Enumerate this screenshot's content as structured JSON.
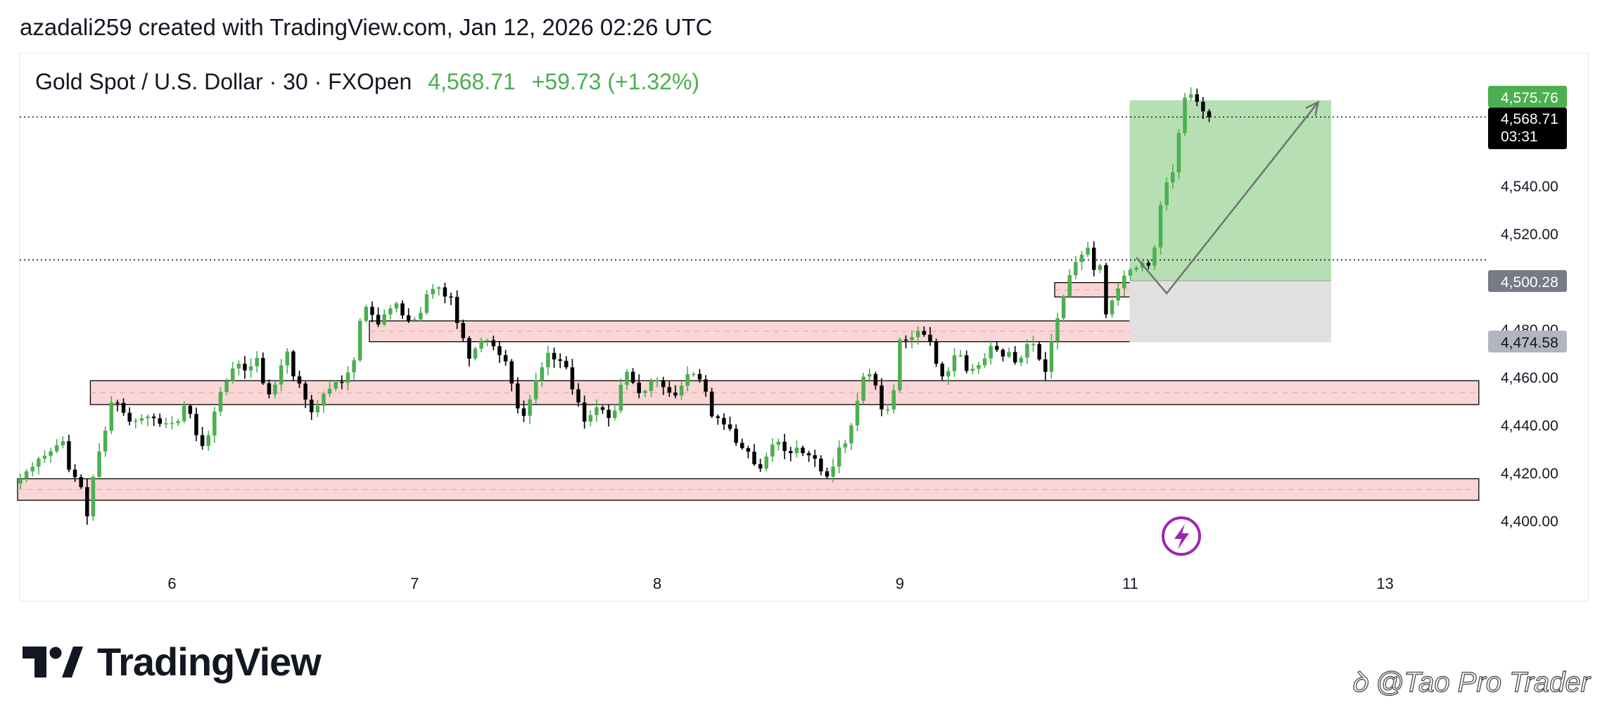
{
  "header": {
    "credit": "azadali259 created with TradingView.com, Jan 12, 2026 02:26 UTC"
  },
  "legend": {
    "symbol": "Gold Spot / U.S. Dollar · 30 · FXOpen",
    "price": "4,568.71",
    "change": "+59.73 (+1.32%)"
  },
  "colors": {
    "up": "#4caf50",
    "down": "#000000",
    "zone_fill": "#f8c8c8",
    "zone_stroke": "#000000",
    "target_fill": "#b6dfb3",
    "stop_fill": "#e0e0e0",
    "arrow": "#6f6f6f",
    "lightning": "#9c27b0"
  },
  "price_labels": {
    "top_green": "4,575.76",
    "current": "4,568.71",
    "countdown": "03:31",
    "entry": "4,500.28",
    "stop": "4,474.58"
  },
  "brand": {
    "name": "TradingView",
    "logo_icon": "tradingview-logo-icon"
  },
  "watermark": {
    "text": "@Tao Pro Trader",
    "icon": "weibo-style-icon"
  },
  "chart_data": {
    "type": "candlestick",
    "symbol": "Gold Spot / U.S. Dollar",
    "interval": "30",
    "ylim": [
      4385,
      4600
    ],
    "y_ticks": [
      {
        "value": 4400,
        "label": "4,400.00"
      },
      {
        "value": 4420,
        "label": "4,420.00"
      },
      {
        "value": 4440,
        "label": "4,440.00"
      },
      {
        "value": 4460,
        "label": "4,460.00"
      },
      {
        "value": 4480,
        "label": "4,480.00"
      },
      {
        "value": 4520,
        "label": "4,520.00"
      },
      {
        "value": 4540,
        "label": "4,540.00"
      }
    ],
    "x_ticks": [
      {
        "index": 25,
        "label": "6"
      },
      {
        "index": 65,
        "label": "7"
      },
      {
        "index": 105,
        "label": "8"
      },
      {
        "index": 145,
        "label": "9"
      },
      {
        "index": 183,
        "label": "11"
      },
      {
        "index": 225,
        "label": "13"
      }
    ],
    "horizontal_dotted_lines": [
      4568.71,
      4509.0
    ],
    "zones": [
      {
        "x_start": 58,
        "x_end": 183,
        "y_low": 4474.8,
        "y_high": 4483.5
      },
      {
        "x_start": 12,
        "x_end": 240,
        "y_low": 4448.5,
        "y_high": 4458.5
      },
      {
        "x_start": 0,
        "x_end": 240,
        "y_low": 4408.5,
        "y_high": 4417.5
      },
      {
        "x_start": 171,
        "x_end": 215,
        "y_low": 4493.5,
        "y_high": 4499.5
      }
    ],
    "position": {
      "x_start": 183,
      "x_end": 216,
      "entry": 4500.28,
      "target": 4575.76,
      "stop": 4474.58
    },
    "projection_path": [
      {
        "index": 184,
        "price": 4510
      },
      {
        "index": 189,
        "price": 4495
      },
      {
        "index": 214,
        "price": 4575
      }
    ],
    "closes": [
      4417.5,
      4420.6,
      4422.5,
      4425.9,
      4427.1,
      4429.0,
      4431.5,
      4433.2,
      4421.3,
      4418.2,
      4414.0,
      4401.8,
      4418.3,
      4428.9,
      4437.6,
      4449.4,
      4449.2,
      4445.1,
      4441.4,
      4441.8,
      4442.8,
      4443.5,
      4442.8,
      4440.5,
      4440.7,
      4440.8,
      4441.6,
      4448.0,
      4444.6,
      4435.7,
      4431.2,
      4435.6,
      4445.6,
      4453.8,
      4458.2,
      4463.6,
      4465.6,
      4462.8,
      4464.5,
      4468.0,
      4457.4,
      4452.8,
      4456.9,
      4464.9,
      4470.7,
      4460.3,
      4457.3,
      4450.6,
      4445.3,
      4448.0,
      4453.0,
      4455.2,
      4458.0,
      4457.6,
      4462.0,
      4467.0,
      4483.5,
      4489.4,
      4486.0,
      4482.0,
      4486.2,
      4488.7,
      4490.8,
      4485.8,
      4483.6,
      4484.1,
      4486.9,
      4494.6,
      4496.9,
      4497.5,
      4493.7,
      4493.5,
      4482.6,
      4476.3,
      4467.7,
      4471.9,
      4475.3,
      4475.4,
      4472.9,
      4469.2,
      4466.6,
      4457.3,
      4446.9,
      4443.8,
      4450.7,
      4458.6,
      4464.1,
      4470.1,
      4467.4,
      4466.8,
      4464.1,
      4454.9,
      4449.4,
      4441.4,
      4444.1,
      4447.4,
      4446.3,
      4442.9,
      4446.0,
      4456.8,
      4462.2,
      4457.7,
      4453.3,
      4454.2,
      4458.5,
      4458.6,
      4455.8,
      4453.5,
      4452.3,
      4456.4,
      4461.2,
      4461.3,
      4459.0,
      4453.9,
      4443.6,
      4442.9,
      4440.2,
      4438.4,
      4432.5,
      4430.3,
      4428.8,
      4423.6,
      4421.8,
      4426.8,
      4431.7,
      4433.0,
      4429.1,
      4428.2,
      4430.5,
      4428.2,
      4427.3,
      4425.9,
      4420.6,
      4418.4,
      4422.6,
      4430.6,
      4432.3,
      4439.8,
      4450.1,
      4460.2,
      4461.3,
      4456.5,
      4446.5,
      4446.5,
      4454.5,
      4475.7,
      4475.4,
      4476.7,
      4479.3,
      4477.7,
      4474.7,
      4465.6,
      4460.3,
      4462.5,
      4469.1,
      4469.1,
      4462.6,
      4463.5,
      4465.0,
      4467.8,
      4473.0,
      4471.4,
      4468.6,
      4470.5,
      4466.1,
      4468.1,
      4473.8,
      4473.8,
      4467.4,
      4462.2,
      4474.9,
      4484.6,
      4493.8,
      4502.6,
      4508.1,
      4511.2,
      4514.1,
      4504.8,
      4506.8,
      4486.2,
      4492.0,
      4497.1,
      4502.4,
      4504.9,
      4505.7,
      4507.8,
      4506.6,
      4514.2,
      4531.9,
      4541.4,
      4545.6,
      4562.0,
      4576.8,
      4578.2,
      4575.1,
      4571.1,
      4568.7
    ]
  }
}
